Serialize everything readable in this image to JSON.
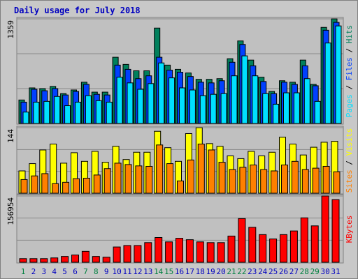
{
  "chart_data": [
    {
      "type": "bar",
      "title": "Daily usage for July 2018",
      "title_color": "#0000c0",
      "ylim": [
        0,
        1359
      ],
      "yticks": [
        1359
      ],
      "grid": true,
      "legend_separator": " / ",
      "series": [
        {
          "name": "Hits",
          "color": "#00805c",
          "values": [
            305,
            462,
            453,
            481,
            388,
            435,
            536,
            407,
            407,
            860,
            767,
            684,
            684,
            1239,
            758,
            703,
            656,
            573,
            573,
            582,
            841,
            1072,
            823,
            601,
            416,
            555,
            536,
            823,
            508,
            1248,
            1359
          ]
        },
        {
          "name": "Files",
          "color": "#0040ff",
          "values": [
            277,
            444,
            425,
            453,
            370,
            416,
            508,
            379,
            370,
            758,
            703,
            582,
            619,
            860,
            693,
            666,
            610,
            536,
            527,
            555,
            795,
            1026,
            749,
            545,
            388,
            536,
            508,
            749,
            490,
            1211,
            1313
          ]
        },
        {
          "name": "Pages",
          "color": "#00e0ff",
          "values": [
            148,
            277,
            287,
            351,
            231,
            277,
            361,
            296,
            277,
            601,
            527,
            444,
            518,
            786,
            592,
            462,
            435,
            361,
            379,
            388,
            619,
            878,
            619,
            388,
            250,
            398,
            398,
            582,
            287,
            1045,
            1267
          ]
        }
      ]
    },
    {
      "type": "bar",
      "ylim": [
        0,
        144
      ],
      "yticks": [
        144
      ],
      "grid": true,
      "series": [
        {
          "name": "Visits",
          "color": "#ffff00",
          "values": [
            49,
            65,
            95,
            108,
            66,
            89,
            70,
            92,
            68,
            103,
            74,
            90,
            90,
            136,
            100,
            70,
            131,
            144,
            109,
            103,
            82,
            76,
            92,
            82,
            90,
            123,
            108,
            84,
            101,
            112,
            114
          ]
        },
        {
          "name": "Sites",
          "color": "#ff8000",
          "values": [
            30,
            38,
            43,
            21,
            24,
            32,
            33,
            40,
            54,
            66,
            63,
            60,
            59,
            106,
            65,
            27,
            73,
            108,
            95,
            68,
            52,
            57,
            62,
            52,
            49,
            62,
            70,
            52,
            55,
            59,
            47
          ]
        }
      ]
    },
    {
      "type": "bar",
      "ylim": [
        0,
        156954
      ],
      "yticks": [
        156954
      ],
      "grid": true,
      "series": [
        {
          "name": "KBytes",
          "color": "#ff0000",
          "values": [
            8625,
            8625,
            8625,
            10350,
            13800,
            17250,
            25875,
            13800,
            12075,
            36225,
            39675,
            39675,
            46575,
            58650,
            48300,
            56925,
            53475,
            48300,
            46575,
            46575,
            62100,
            103500,
            82800,
            65550,
            55200,
            65550,
            74175,
            105225,
            86250,
            156954,
            148350
          ]
        }
      ],
      "categories": [
        "1",
        "2",
        "3",
        "4",
        "5",
        "6",
        "7",
        "8",
        "9",
        "10",
        "11",
        "12",
        "13",
        "14",
        "15",
        "16",
        "17",
        "18",
        "19",
        "20",
        "21",
        "22",
        "23",
        "24",
        "25",
        "26",
        "27",
        "28",
        "29",
        "30",
        "31"
      ],
      "category_colors": [
        "#008040",
        "#0000c0",
        "#0000c0",
        "#0000c0",
        "#0000c0",
        "#0000c0",
        "#008040",
        "#008040",
        "#0000c0",
        "#0000c0",
        "#0000c0",
        "#0000c0",
        "#0000c0",
        "#008040",
        "#008040",
        "#0000c0",
        "#0000c0",
        "#0000c0",
        "#0000c0",
        "#0000c0",
        "#008040",
        "#008040",
        "#0000c0",
        "#0000c0",
        "#0000c0",
        "#0000c0",
        "#0000c0",
        "#008040",
        "#008040",
        "#0000c0",
        "#0000c0"
      ]
    }
  ]
}
